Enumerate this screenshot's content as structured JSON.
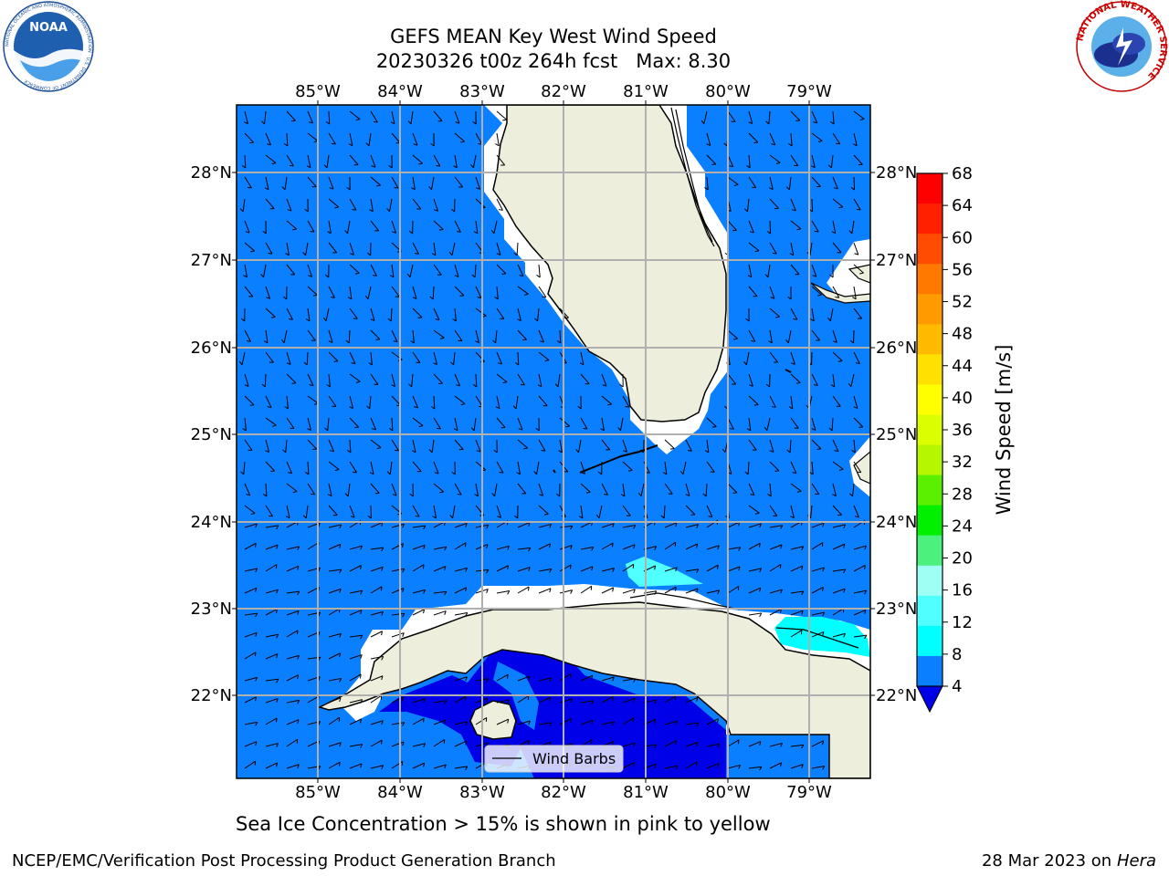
{
  "header": {
    "title_line1": "GEFS MEAN Key West Wind Speed",
    "title_line2": "20230326 t00z 264h fcst   Max: 8.30"
  },
  "logos": {
    "noaa": {
      "icon": "noaa-logo-icon",
      "text": "NOAA",
      "ring_text": "NATIONAL OCEANIC AND ATMOSPHERIC ADMINISTRATION · U.S. DEPARTMENT OF COMMERCE"
    },
    "nws": {
      "icon": "nws-logo-icon",
      "ring_text": "NATIONAL WEATHER SERVICE"
    }
  },
  "map": {
    "lon_labels": [
      "85°W",
      "84°W",
      "83°W",
      "82°W",
      "81°W",
      "80°W",
      "79°W"
    ],
    "lat_labels": [
      "28°N",
      "27°N",
      "26°N",
      "25°N",
      "24°N",
      "23°N",
      "22°N"
    ],
    "colors": {
      "ocean_4_8": "#0a7fff",
      "ocean_below_4": "#0000e8",
      "ocean_8_12": "#00ffff",
      "ocean_12_16": "#50ffff",
      "land": "#eeeedc",
      "nodata": "#ffffff",
      "grid": "#b0b0b0",
      "coast": "#000000"
    },
    "legend": {
      "label": "Wind Barbs"
    }
  },
  "colorbar": {
    "label": "Wind Speed [m/s]",
    "ticks": [
      "68",
      "64",
      "60",
      "56",
      "52",
      "48",
      "44",
      "40",
      "36",
      "32",
      "28",
      "24",
      "20",
      "16",
      "12",
      "8",
      "4"
    ],
    "colors_top_to_bottom": [
      "#ff0000",
      "#ff2000",
      "#ff4c00",
      "#ff7800",
      "#ff9a00",
      "#ffbb00",
      "#ffe000",
      "#ffff00",
      "#dcff00",
      "#b6f600",
      "#5af000",
      "#00f000",
      "#4cf07c",
      "#a0fff5",
      "#50ffff",
      "#00ffff",
      "#0a7fff"
    ],
    "under_color": "#0000e8"
  },
  "footer": {
    "note": "Sea Ice Concentration > 15% is shown in pink to yellow",
    "credit": "NCEP/EMC/Verification Post Processing Product Generation Branch",
    "date": "28 Mar 2023 on",
    "machine": "Hera"
  }
}
